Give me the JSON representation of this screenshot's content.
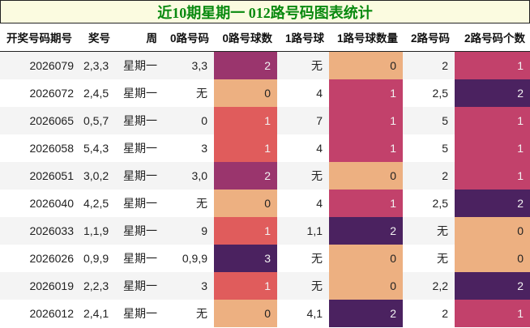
{
  "title": "近10期星期一 012路号码图表统计",
  "columns": [
    "开奖号码期号",
    "奖号",
    "周",
    "0路号码",
    "0路号球数",
    "1路号球",
    "1路号球数量",
    "2路号码",
    "2路号码个数"
  ],
  "rows": [
    {
      "period": "2026079",
      "numbers": "2,3,3",
      "weekday": "星期一",
      "r0": "3,3",
      "r0n": "2",
      "r1": "无",
      "r1n": "0",
      "r2": "2",
      "r2n": "1"
    },
    {
      "period": "2026072",
      "numbers": "2,4,5",
      "weekday": "星期一",
      "r0": "无",
      "r0n": "0",
      "r1": "4",
      "r1n": "1",
      "r2": "2,5",
      "r2n": "2"
    },
    {
      "period": "2026065",
      "numbers": "0,5,7",
      "weekday": "星期一",
      "r0": "0",
      "r0n": "1",
      "r1": "7",
      "r1n": "1",
      "r2": "5",
      "r2n": "1"
    },
    {
      "period": "2026058",
      "numbers": "5,4,3",
      "weekday": "星期一",
      "r0": "3",
      "r0n": "1",
      "r1": "4",
      "r1n": "1",
      "r2": "5",
      "r2n": "1"
    },
    {
      "period": "2026051",
      "numbers": "3,0,2",
      "weekday": "星期一",
      "r0": "3,0",
      "r0n": "2",
      "r1": "无",
      "r1n": "0",
      "r2": "2",
      "r2n": "1"
    },
    {
      "period": "2026040",
      "numbers": "4,2,5",
      "weekday": "星期一",
      "r0": "无",
      "r0n": "0",
      "r1": "4",
      "r1n": "1",
      "r2": "2,5",
      "r2n": "2"
    },
    {
      "period": "2026033",
      "numbers": "1,1,9",
      "weekday": "星期一",
      "r0": "9",
      "r0n": "1",
      "r1": "1,1",
      "r1n": "2",
      "r2": "无",
      "r2n": "0"
    },
    {
      "period": "2026026",
      "numbers": "0,9,9",
      "weekday": "星期一",
      "r0": "0,9,9",
      "r0n": "3",
      "r1": "无",
      "r1n": "0",
      "r2": "无",
      "r2n": "0"
    },
    {
      "period": "2026019",
      "numbers": "2,2,3",
      "weekday": "星期一",
      "r0": "3",
      "r0n": "1",
      "r1": "无",
      "r1n": "0",
      "r2": "2,2",
      "r2n": "2"
    },
    {
      "period": "2026012",
      "numbers": "2,4,1",
      "weekday": "星期一",
      "r0": "无",
      "r0n": "0",
      "r1": "4,1",
      "r1n": "2",
      "r2": "2",
      "r2n": "1"
    }
  ],
  "colors": {
    "r0n": {
      "0": "#edb081",
      "1": "#e05c5c",
      "2": "#9a356d",
      "3": "#4b2260"
    },
    "r1n": {
      "0": "#edb081",
      "1": "#c2416b",
      "2": "#4b2260"
    },
    "r2n": {
      "0": "#edb081",
      "1": "#c2416b",
      "2": "#4b2260"
    }
  },
  "chart_data": {
    "type": "table",
    "title": "近10期星期一 012路号码图表统计",
    "columns": [
      "开奖号码期号",
      "奖号",
      "周",
      "0路号码",
      "0路号球数",
      "1路号球",
      "1路号球数量",
      "2路号码",
      "2路号码个数"
    ],
    "categories": [
      "2026079",
      "2026072",
      "2026065",
      "2026058",
      "2026051",
      "2026040",
      "2026033",
      "2026026",
      "2026019",
      "2026012"
    ],
    "series": [
      {
        "name": "0路号球数",
        "values": [
          2,
          0,
          1,
          1,
          2,
          0,
          1,
          3,
          1,
          0
        ]
      },
      {
        "name": "1路号球数量",
        "values": [
          0,
          1,
          1,
          1,
          0,
          1,
          2,
          0,
          0,
          2
        ]
      },
      {
        "name": "2路号码个数",
        "values": [
          1,
          2,
          1,
          1,
          1,
          2,
          0,
          0,
          2,
          1
        ]
      }
    ]
  }
}
